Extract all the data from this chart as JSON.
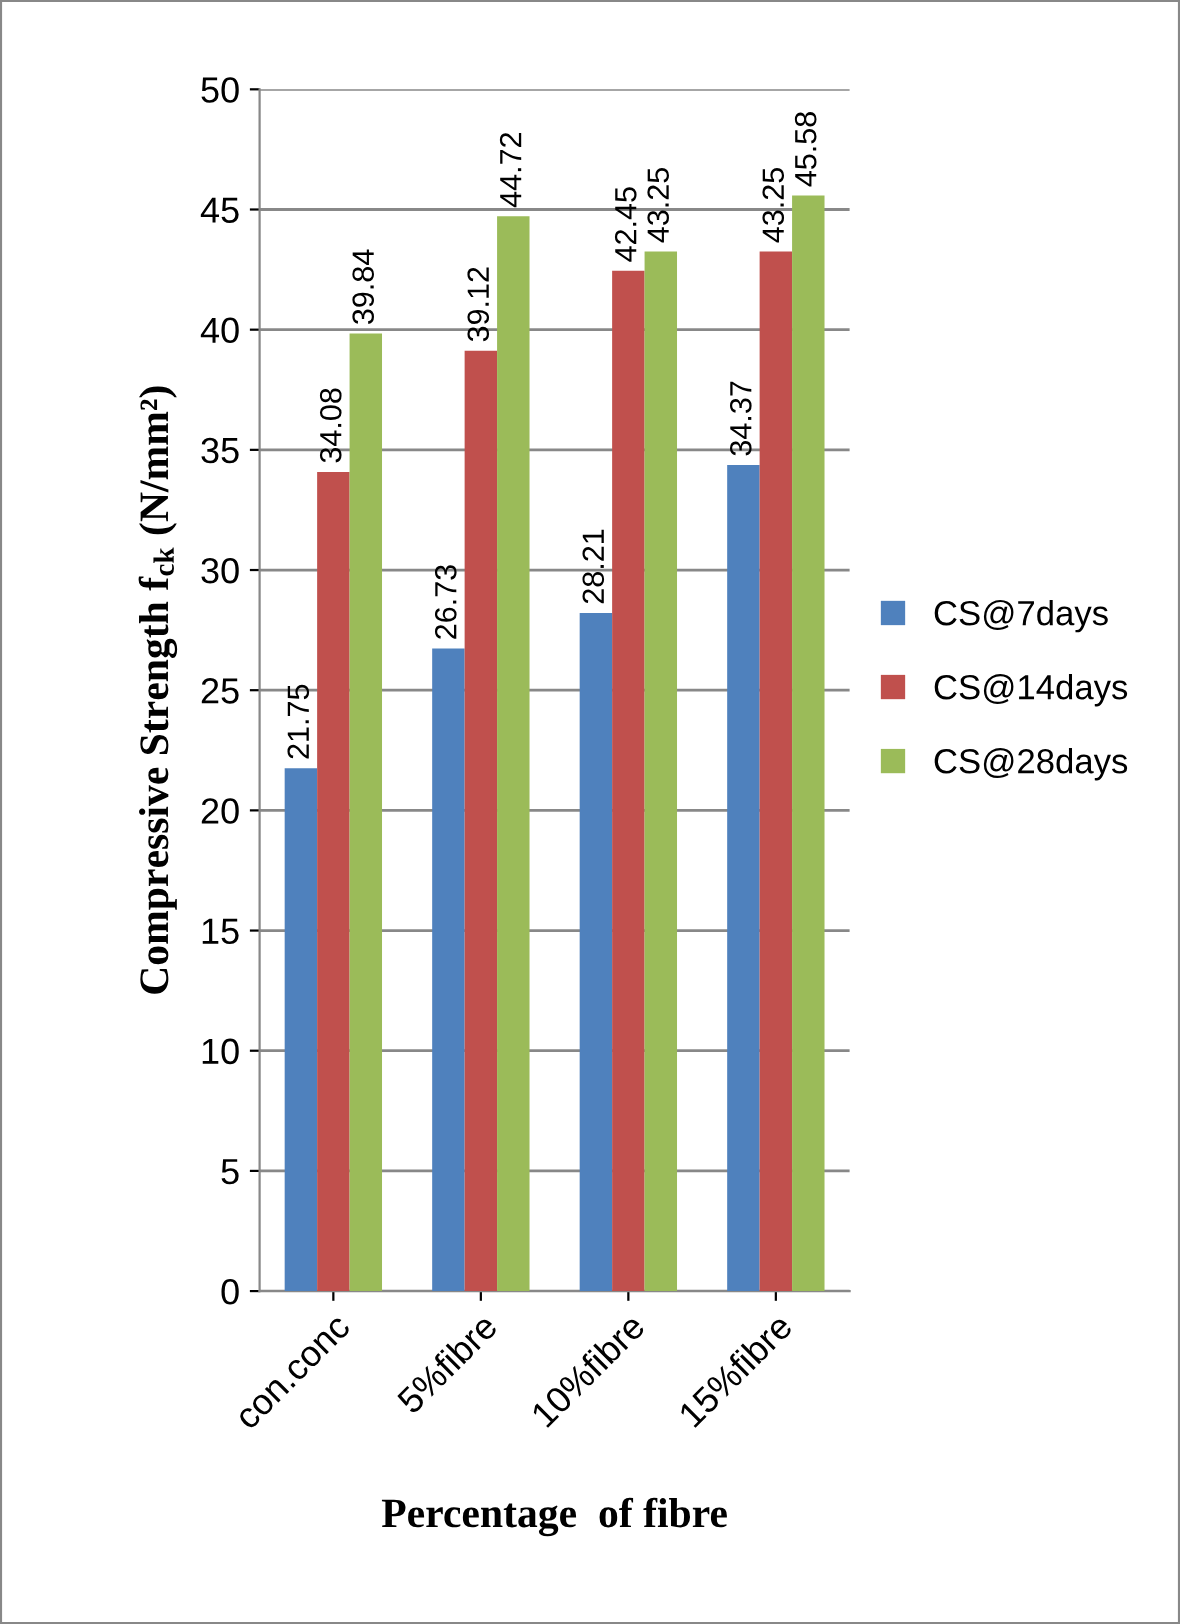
{
  "chart_data": {
    "type": "bar",
    "xlabel": "Percentage  of fibre",
    "ylabel": "Compressive Strength f$_{ck}$ (N/mm²)",
    "categories": [
      "con.conc",
      "5%fibre",
      "10%fibre",
      "15%fibre"
    ],
    "series": [
      {
        "name": "CS@7days",
        "color": "#4f81bd",
        "values": [
          21.75,
          26.73,
          28.21,
          34.37
        ]
      },
      {
        "name": "CS@14days",
        "color": "#c0504d",
        "values": [
          34.08,
          39.12,
          42.45,
          43.25
        ]
      },
      {
        "name": "CS@28days",
        "color": "#9bbb59",
        "values": [
          39.84,
          44.72,
          43.25,
          45.58
        ]
      }
    ],
    "ylim": [
      0,
      50
    ],
    "yticks": [
      0,
      5,
      10,
      15,
      20,
      25,
      30,
      35,
      40,
      45,
      50
    ],
    "grid": "y",
    "legend": "right",
    "data_labels": true
  }
}
